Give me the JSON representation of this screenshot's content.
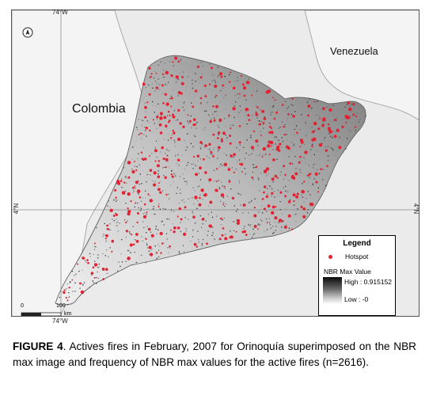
{
  "map": {
    "lon_top_label": "74°W",
    "lon_bottom_label": "74°W",
    "lat_left_label": "4°N",
    "lat_right_label": "4°N",
    "countries": {
      "colombia": "Colombia",
      "venezuela": "Venezuela"
    },
    "north_arrow": "north-arrow-icon",
    "scale_bar": {
      "zero_label": "0",
      "hundred_label": "100",
      "unit": "km"
    },
    "colors": {
      "hotspot": "#e32232",
      "land_background": "#ebebeb",
      "study_area": "#ffffff"
    }
  },
  "legend": {
    "title": "Legend",
    "hotspot_label": "Hotspot",
    "nbr_title": "NBR Max Value",
    "high_label": "High : 0.915152",
    "low_label": "Low : -0"
  },
  "caption": {
    "figure_label": "FIGURE 4",
    "text": ". Actives fires in February, 2007 for Orinoquía superimposed on the NBR max image and frequency of NBR max values for the active fires (n=2616)."
  }
}
